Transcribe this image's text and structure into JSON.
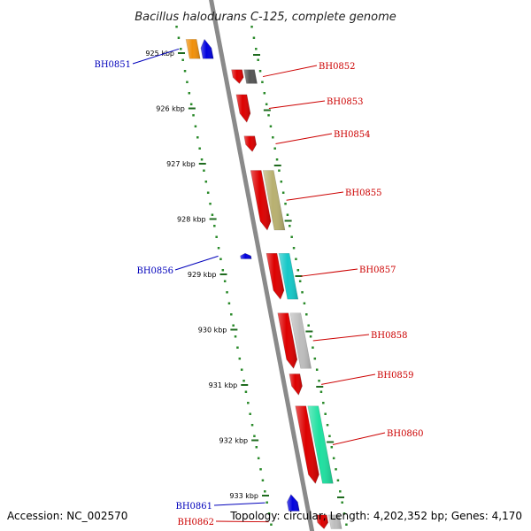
{
  "title": "Bacillus halodurans C-125, complete genome",
  "footer": {
    "accession": "Accession: NC_002570",
    "topology": "Topology: circular; Length: 4,202,352 bp; Genes: 4,170"
  },
  "colors": {
    "backbone": "#8a8a8a",
    "tick_minor": "#2a8a2a",
    "tick_major": "#1f6b1f",
    "label_forward": "#cc0000",
    "label_reverse": "#0000bb",
    "leader_forward": "#cc0000",
    "leader_reverse": "#0000bb"
  },
  "kbp_ticks": [
    "925 kbp",
    "926 kbp",
    "927 kbp",
    "928 kbp",
    "929 kbp",
    "930 kbp",
    "931 kbp",
    "932 kbp",
    "933 kbp"
  ],
  "genes": [
    {
      "label": "BH0851",
      "strand": "reverse",
      "start_kbp": 924.75,
      "end_kbp": 925.1,
      "color": "#0000dd",
      "side": "left"
    },
    {
      "label": "BH0852",
      "strand": "forward",
      "start_kbp": 925.3,
      "end_kbp": 925.55,
      "color": "#dd0000",
      "side": "right"
    },
    {
      "label": "BH0853",
      "strand": "forward",
      "start_kbp": 925.75,
      "end_kbp": 926.25,
      "color": "#dd0000",
      "side": "right"
    },
    {
      "label": "BH0854",
      "strand": "forward",
      "start_kbp": 926.5,
      "end_kbp": 926.78,
      "color": "#dd0000",
      "side": "right"
    },
    {
      "label": "BH0855",
      "strand": "forward",
      "start_kbp": 927.12,
      "end_kbp": 928.2,
      "color": "#dd0000",
      "side": "right"
    },
    {
      "label": "BH0856",
      "strand": "reverse",
      "start_kbp": 928.62,
      "end_kbp": 928.72,
      "color": "#0000dd",
      "side": "left"
    },
    {
      "label": "BH0857",
      "strand": "forward",
      "start_kbp": 928.62,
      "end_kbp": 929.45,
      "color": "#dd0000",
      "side": "right"
    },
    {
      "label": "BH0858",
      "strand": "forward",
      "start_kbp": 929.7,
      "end_kbp": 930.7,
      "color": "#dd0000",
      "side": "right"
    },
    {
      "label": "BH0859",
      "strand": "forward",
      "start_kbp": 930.8,
      "end_kbp": 931.18,
      "color": "#dd0000",
      "side": "right"
    },
    {
      "label": "BH0860",
      "strand": "forward",
      "start_kbp": 931.38,
      "end_kbp": 932.78,
      "color": "#dd0000",
      "side": "right"
    },
    {
      "label": "BH0861",
      "strand": "reverse",
      "start_kbp": 932.98,
      "end_kbp": 933.28,
      "color": "#0000dd",
      "side": "left"
    },
    {
      "label": "BH0862",
      "strand": "forward",
      "start_kbp": 933.35,
      "end_kbp": 933.6,
      "color": "#dd0000",
      "side": "left"
    }
  ],
  "feature_boxes": [
    {
      "kind": "reverse-feature",
      "start_kbp": 924.75,
      "end_kbp": 925.1,
      "color": "#f0900a"
    },
    {
      "kind": "cds-feature",
      "start_kbp": 925.3,
      "end_kbp": 925.55,
      "color": "#555555"
    },
    {
      "kind": "cds-feature",
      "start_kbp": 927.12,
      "end_kbp": 928.2,
      "color": "#b8b070"
    },
    {
      "kind": "cds-feature",
      "start_kbp": 928.62,
      "end_kbp": 929.45,
      "color": "#15c8c8"
    },
    {
      "kind": "cds-feature",
      "start_kbp": 929.7,
      "end_kbp": 930.7,
      "color": "#bdbdbd"
    },
    {
      "kind": "cds-feature",
      "start_kbp": 931.38,
      "end_kbp": 932.78,
      "color": "#1ee0a0"
    },
    {
      "kind": "cds-feature",
      "start_kbp": 933.35,
      "end_kbp": 933.6,
      "color": "#bdbdbd"
    }
  ]
}
